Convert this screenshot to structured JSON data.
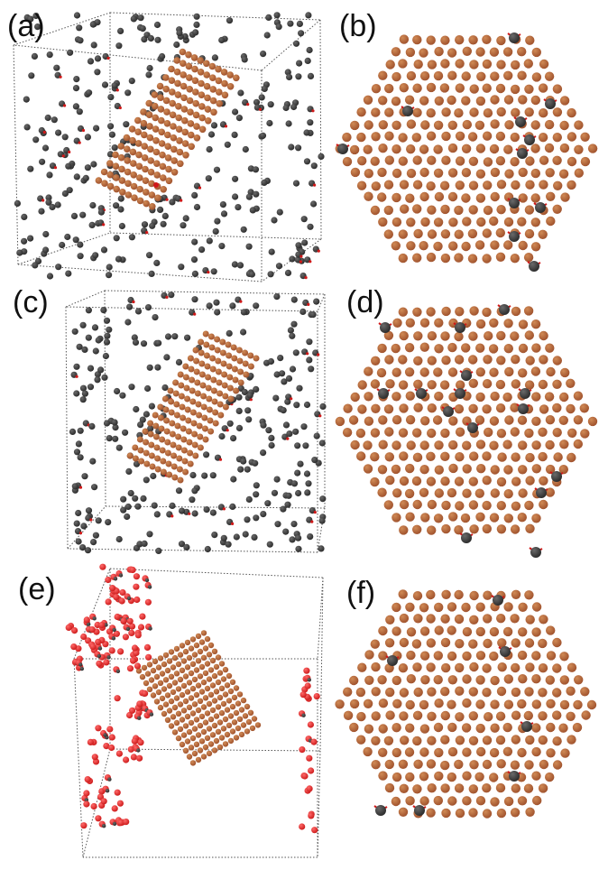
{
  "panels": [
    {
      "label": "(a)",
      "kind": "cube"
    },
    {
      "label": "(b)",
      "kind": "hexagon"
    },
    {
      "label": "(c)",
      "kind": "cube"
    },
    {
      "label": "(d)",
      "kind": "hexagon"
    },
    {
      "label": "(e)",
      "kind": "cube"
    },
    {
      "label": "(f)",
      "kind": "hexagon"
    }
  ],
  "colors": {
    "copper": "#a0522d",
    "copper_highlight": "#d08a55",
    "dark_atom": "#2b2b2b",
    "dark_highlight": "#6a6a6a",
    "red_atom": "#cc1a1a",
    "red_highlight": "#ff6a6a",
    "bond": "#d01818",
    "box_line": "#555555"
  }
}
